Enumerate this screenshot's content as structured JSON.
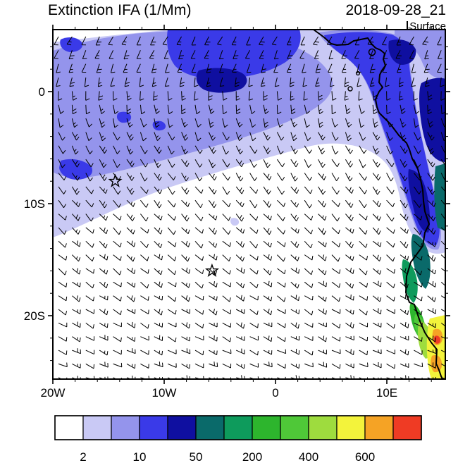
{
  "header": {
    "title": "Extinction IFA (1/Mm)",
    "date": "2018-09-28_21",
    "level": "Surface"
  },
  "axes": {
    "lon_ticks": [
      {
        "label": "20W",
        "value": -20
      },
      {
        "label": "10W",
        "value": -10
      },
      {
        "label": "0",
        "value": 0
      },
      {
        "label": "10E",
        "value": 10
      }
    ],
    "lat_ticks": [
      {
        "label": "0",
        "value": 0
      },
      {
        "label": "10S",
        "value": -10
      },
      {
        "label": "20S",
        "value": -20
      }
    ]
  },
  "chart_data": {
    "type": "heatmap",
    "subtype": "filled-contour geographic map with wind barbs",
    "title": "Extinction IFA (1/Mm)",
    "valid_time": "2018-09-28_21",
    "level": "Surface",
    "units": "1/Mm",
    "lon_range_deg": [
      -20,
      15.3
    ],
    "lat_range_deg": [
      -25.7,
      5.5
    ],
    "colorbar": {
      "colors": [
        "#FFFFFF",
        "#C9C9F5",
        "#9494EC",
        "#3A3AE8",
        "#0F0FA0",
        "#0A6A6A",
        "#0E9B5C",
        "#2DB52D",
        "#4FC838",
        "#9EDC3E",
        "#F3F33B",
        "#F5A325",
        "#EF3B24"
      ],
      "levels": [
        2,
        5,
        10,
        20,
        50,
        100,
        200,
        300,
        400,
        500,
        600,
        700
      ],
      "labeled_levels": [
        "2",
        "10",
        "50",
        "200",
        "400",
        "600"
      ]
    },
    "markers": [
      {
        "shape": "open-star",
        "lon": -14.4,
        "lat": -8.0
      },
      {
        "shape": "open-star",
        "lon": -5.7,
        "lat": -16.0
      }
    ],
    "wind": {
      "style": "barbs",
      "flow": "southeasterly trade winds over the South Atlantic curving to southerly near the equator and south-southwesterly north of it",
      "typical_speed_kt": "5-15"
    },
    "shaded_regions": [
      {
        "extinction_1_per_Mm": "2-20",
        "where": "broad aerosol band across the north of the domain from the northwest corner toward the Gulf of Guinea, plus a coastal strip along Gabon-Congo-Angola south to about 13S"
      },
      {
        "extinction_1_per_Mm": "20-100",
        "where": "patches within the band near 1S-4S, along the equatorial coast, and inland at the upper-right / right edge"
      },
      {
        "extinction_1_per_Mm": "100-400",
        "where": "narrow strip hugging the Angola-Namibia coastline between about 13S and 22S"
      },
      {
        "extinction_1_per_Mm": "400-700",
        "where": "small pockets at the Namibian coast near the bottom-right corner"
      },
      {
        "extinction_1_per_Mm": "<2",
        "where": "most of the central and southern open ocean"
      }
    ]
  }
}
